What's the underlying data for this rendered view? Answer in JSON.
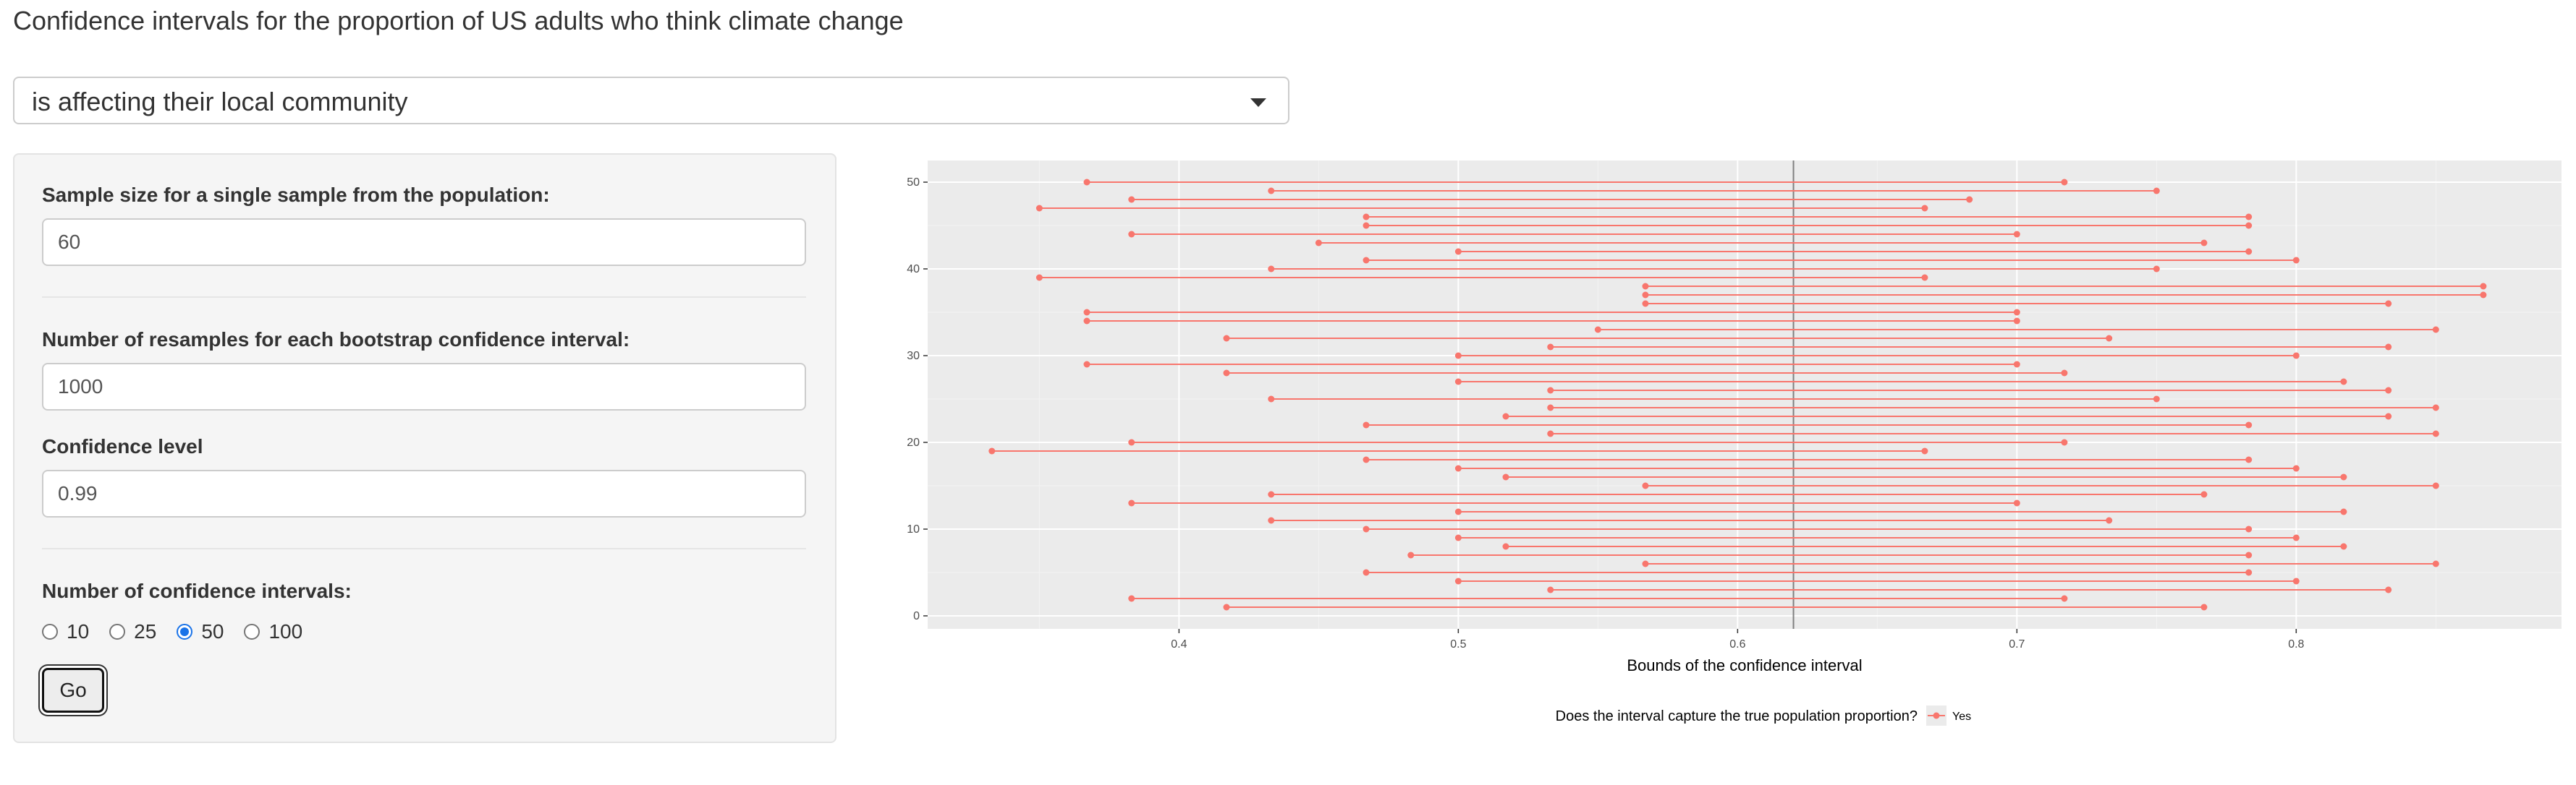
{
  "page": {
    "title": "Confidence intervals for the proportion of US adults who think climate change"
  },
  "question_select": {
    "selected": "is affecting their local community"
  },
  "sidebar": {
    "sample_size_label": "Sample size for a single sample from the population:",
    "sample_size_value": "60",
    "resamples_label": "Number of resamples for each bootstrap confidence interval:",
    "resamples_value": "1000",
    "confidence_label": "Confidence level",
    "confidence_value": "0.99",
    "num_intervals_label": "Number of confidence intervals:",
    "num_intervals_options": [
      "10",
      "25",
      "50",
      "100"
    ],
    "num_intervals_selected": "50",
    "go_label": "Go"
  },
  "colors": {
    "interval": "#F8766D",
    "panel_bg": "#EBEBEB",
    "grid_major": "#FFFFFF",
    "true_line": "#808080"
  },
  "chart_data": {
    "type": "interval",
    "xlabel": "Bounds of the confidence interval",
    "ylabel": "",
    "xlim": [
      0.31,
      0.895
    ],
    "ylim": [
      -1.5,
      52.5
    ],
    "x_ticks": [
      0.4,
      0.5,
      0.6,
      0.7,
      0.8
    ],
    "x_tick_labels": [
      "0.4",
      "0.5",
      "0.6",
      "0.7",
      "0.8"
    ],
    "y_ticks": [
      0,
      10,
      20,
      30,
      40,
      50
    ],
    "y_tick_labels": [
      "0",
      "10",
      "20",
      "30",
      "40",
      "50"
    ],
    "true_value": 0.62,
    "grid": true,
    "legend": {
      "title": "Does the interval capture the true population proportion?",
      "entries": [
        "Yes"
      ],
      "position": "bottom"
    },
    "intervals": [
      {
        "id": 1,
        "lower": 0.417,
        "upper": 0.767,
        "captures": "Yes"
      },
      {
        "id": 2,
        "lower": 0.383,
        "upper": 0.717,
        "captures": "Yes"
      },
      {
        "id": 3,
        "lower": 0.533,
        "upper": 0.833,
        "captures": "Yes"
      },
      {
        "id": 4,
        "lower": 0.5,
        "upper": 0.8,
        "captures": "Yes"
      },
      {
        "id": 5,
        "lower": 0.467,
        "upper": 0.783,
        "captures": "Yes"
      },
      {
        "id": 6,
        "lower": 0.567,
        "upper": 0.85,
        "captures": "Yes"
      },
      {
        "id": 7,
        "lower": 0.483,
        "upper": 0.783,
        "captures": "Yes"
      },
      {
        "id": 8,
        "lower": 0.517,
        "upper": 0.817,
        "captures": "Yes"
      },
      {
        "id": 9,
        "lower": 0.5,
        "upper": 0.8,
        "captures": "Yes"
      },
      {
        "id": 10,
        "lower": 0.467,
        "upper": 0.783,
        "captures": "Yes"
      },
      {
        "id": 11,
        "lower": 0.433,
        "upper": 0.733,
        "captures": "Yes"
      },
      {
        "id": 12,
        "lower": 0.5,
        "upper": 0.817,
        "captures": "Yes"
      },
      {
        "id": 13,
        "lower": 0.383,
        "upper": 0.7,
        "captures": "Yes"
      },
      {
        "id": 14,
        "lower": 0.433,
        "upper": 0.767,
        "captures": "Yes"
      },
      {
        "id": 15,
        "lower": 0.567,
        "upper": 0.85,
        "captures": "Yes"
      },
      {
        "id": 16,
        "lower": 0.517,
        "upper": 0.817,
        "captures": "Yes"
      },
      {
        "id": 17,
        "lower": 0.5,
        "upper": 0.8,
        "captures": "Yes"
      },
      {
        "id": 18,
        "lower": 0.467,
        "upper": 0.783,
        "captures": "Yes"
      },
      {
        "id": 19,
        "lower": 0.333,
        "upper": 0.667,
        "captures": "Yes"
      },
      {
        "id": 20,
        "lower": 0.383,
        "upper": 0.717,
        "captures": "Yes"
      },
      {
        "id": 21,
        "lower": 0.533,
        "upper": 0.85,
        "captures": "Yes"
      },
      {
        "id": 22,
        "lower": 0.467,
        "upper": 0.783,
        "captures": "Yes"
      },
      {
        "id": 23,
        "lower": 0.517,
        "upper": 0.833,
        "captures": "Yes"
      },
      {
        "id": 24,
        "lower": 0.533,
        "upper": 0.85,
        "captures": "Yes"
      },
      {
        "id": 25,
        "lower": 0.433,
        "upper": 0.75,
        "captures": "Yes"
      },
      {
        "id": 26,
        "lower": 0.533,
        "upper": 0.833,
        "captures": "Yes"
      },
      {
        "id": 27,
        "lower": 0.5,
        "upper": 0.817,
        "captures": "Yes"
      },
      {
        "id": 28,
        "lower": 0.417,
        "upper": 0.717,
        "captures": "Yes"
      },
      {
        "id": 29,
        "lower": 0.367,
        "upper": 0.7,
        "captures": "Yes"
      },
      {
        "id": 30,
        "lower": 0.5,
        "upper": 0.8,
        "captures": "Yes"
      },
      {
        "id": 31,
        "lower": 0.533,
        "upper": 0.833,
        "captures": "Yes"
      },
      {
        "id": 32,
        "lower": 0.417,
        "upper": 0.733,
        "captures": "Yes"
      },
      {
        "id": 33,
        "lower": 0.55,
        "upper": 0.85,
        "captures": "Yes"
      },
      {
        "id": 34,
        "lower": 0.367,
        "upper": 0.7,
        "captures": "Yes"
      },
      {
        "id": 35,
        "lower": 0.367,
        "upper": 0.7,
        "captures": "Yes"
      },
      {
        "id": 36,
        "lower": 0.567,
        "upper": 0.833,
        "captures": "Yes"
      },
      {
        "id": 37,
        "lower": 0.567,
        "upper": 0.867,
        "captures": "Yes"
      },
      {
        "id": 38,
        "lower": 0.567,
        "upper": 0.867,
        "captures": "Yes"
      },
      {
        "id": 39,
        "lower": 0.35,
        "upper": 0.667,
        "captures": "Yes"
      },
      {
        "id": 40,
        "lower": 0.433,
        "upper": 0.75,
        "captures": "Yes"
      },
      {
        "id": 41,
        "lower": 0.467,
        "upper": 0.8,
        "captures": "Yes"
      },
      {
        "id": 42,
        "lower": 0.5,
        "upper": 0.783,
        "captures": "Yes"
      },
      {
        "id": 43,
        "lower": 0.45,
        "upper": 0.767,
        "captures": "Yes"
      },
      {
        "id": 44,
        "lower": 0.383,
        "upper": 0.7,
        "captures": "Yes"
      },
      {
        "id": 45,
        "lower": 0.467,
        "upper": 0.783,
        "captures": "Yes"
      },
      {
        "id": 46,
        "lower": 0.467,
        "upper": 0.783,
        "captures": "Yes"
      },
      {
        "id": 47,
        "lower": 0.35,
        "upper": 0.667,
        "captures": "Yes"
      },
      {
        "id": 48,
        "lower": 0.383,
        "upper": 0.683,
        "captures": "Yes"
      },
      {
        "id": 49,
        "lower": 0.433,
        "upper": 0.75,
        "captures": "Yes"
      },
      {
        "id": 50,
        "lower": 0.367,
        "upper": 0.717,
        "captures": "Yes"
      }
    ]
  }
}
